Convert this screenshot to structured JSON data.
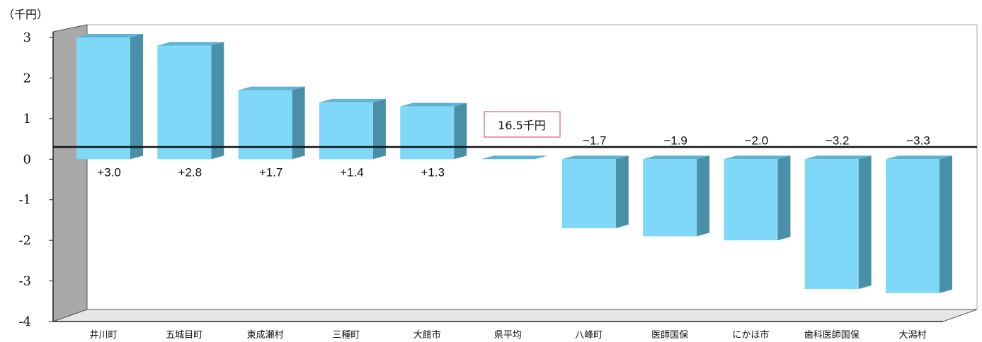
{
  "chart_data": {
    "type": "bar",
    "unit_label": "（千円）",
    "categories": [
      "井川町",
      "五城目町",
      "東成瀬村",
      "三種町",
      "大館市",
      "県平均",
      "八峰町",
      "医師国保",
      "にかほ市",
      "歯科医師国保",
      "大潟村"
    ],
    "values": [
      3.0,
      2.8,
      1.7,
      1.4,
      1.3,
      0,
      -1.7,
      -1.9,
      -2.0,
      -3.2,
      -3.3
    ],
    "value_labels": [
      "+3.0",
      "+2.8",
      "+1.7",
      "+1.4",
      "+1.3",
      "",
      "−1.7",
      "−1.9",
      "−2.0",
      "−3.2",
      "−3.3"
    ],
    "average_label": "16.5千円",
    "y_ticks": [
      "3",
      "2",
      "1",
      "0",
      "-1",
      "-2",
      "-3",
      "-4"
    ],
    "ylim": [
      -4,
      3
    ],
    "grid": false,
    "legend": "none",
    "colors": {
      "bar_front": "#7fd8f8",
      "bar_side": "#4a8fa8",
      "bar_top": "#5fb3d3",
      "wall": "#a9a9a9",
      "floor": "#e6e6e6",
      "average_box_border": "#e06060"
    }
  }
}
